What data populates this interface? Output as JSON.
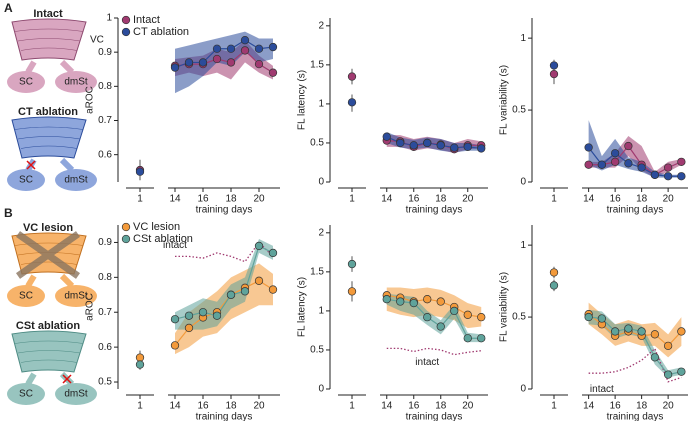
{
  "panel_labels": [
    "A",
    "B"
  ],
  "diagrams": [
    {
      "title": "Intact",
      "label": "VC",
      "left": "SC",
      "right": "dmSt"
    },
    {
      "title": "CT ablation",
      "left": "SC",
      "right": "dmSt"
    },
    {
      "title": "VC lesion",
      "left": "SC",
      "right": "dmSt"
    },
    {
      "title": "CSt ablation",
      "left": "SC",
      "right": "dmSt"
    }
  ],
  "chart_data": [
    {
      "type": "line",
      "ylabel": "aROC",
      "xlabel": "training days",
      "legend": "upper left",
      "x": [
        1,
        14,
        15,
        16,
        17,
        18,
        19,
        20,
        21
      ],
      "xlim": [
        0.5,
        21.5
      ],
      "xbreak": [
        1.5,
        13.5
      ],
      "xticks": [
        1,
        14,
        16,
        18,
        20
      ],
      "ylim": [
        0.52,
        1.0
      ],
      "yticks": [
        0.6,
        0.7,
        0.8,
        0.9,
        1
      ],
      "series": [
        {
          "name": "Intact",
          "color": "#a03a70",
          "values": [
            0.555,
            0.86,
            0.865,
            0.865,
            0.88,
            0.87,
            0.905,
            0.865,
            0.84
          ],
          "lower": [
            0.525,
            0.83,
            0.84,
            0.83,
            0.84,
            0.82,
            0.87,
            0.84,
            0.82
          ],
          "upper": [
            0.585,
            0.88,
            0.885,
            0.89,
            0.91,
            0.9,
            0.935,
            0.89,
            0.86
          ]
        },
        {
          "name": "CT ablation",
          "color": "#2b4c9b",
          "values": [
            0.55,
            0.855,
            0.87,
            0.87,
            0.91,
            0.91,
            0.935,
            0.91,
            0.915
          ],
          "lower": [
            0.535,
            0.78,
            0.8,
            0.83,
            0.87,
            0.86,
            0.9,
            0.87,
            0.88
          ],
          "upper": [
            0.565,
            0.91,
            0.92,
            0.93,
            0.94,
            0.95,
            0.96,
            0.94,
            0.94
          ]
        }
      ]
    },
    {
      "type": "line",
      "ylabel": "FL latency (s)",
      "xlabel": "training days",
      "x": [
        1,
        14,
        15,
        16,
        17,
        18,
        19,
        20,
        21
      ],
      "xlim": [
        0.5,
        21.5
      ],
      "xbreak": [
        1.5,
        13.5
      ],
      "xticks": [
        1,
        14,
        16,
        18,
        20
      ],
      "ylim": [
        0,
        2.1
      ],
      "yticks": [
        0,
        0.5,
        1,
        1.5,
        2
      ],
      "series": [
        {
          "name": "Intact",
          "color": "#a03a70",
          "values": [
            1.35,
            0.53,
            0.52,
            0.45,
            0.5,
            0.48,
            0.42,
            0.47,
            0.47
          ],
          "lower": [
            1.25,
            0.45,
            0.45,
            0.4,
            0.43,
            0.41,
            0.37,
            0.42,
            0.43
          ],
          "upper": [
            1.45,
            0.6,
            0.6,
            0.55,
            0.58,
            0.55,
            0.5,
            0.55,
            0.52
          ]
        },
        {
          "name": "CT ablation",
          "color": "#2b4c9b",
          "values": [
            1.02,
            0.58,
            0.5,
            0.47,
            0.5,
            0.47,
            0.44,
            0.45,
            0.43
          ],
          "lower": [
            0.9,
            0.5,
            0.44,
            0.42,
            0.44,
            0.4,
            0.38,
            0.4,
            0.4
          ],
          "upper": [
            1.12,
            0.64,
            0.57,
            0.54,
            0.57,
            0.55,
            0.5,
            0.5,
            0.47
          ]
        }
      ]
    },
    {
      "type": "line",
      "ylabel": "FL variability (s)",
      "xlabel": "training days",
      "x": [
        1,
        14,
        15,
        16,
        17,
        18,
        19,
        20,
        21
      ],
      "xlim": [
        0.5,
        21.5
      ],
      "xbreak": [
        1.5,
        13.5
      ],
      "xticks": [
        1,
        14,
        16,
        18,
        20
      ],
      "ylim": [
        0,
        1.14
      ],
      "yticks": [
        0,
        0.5,
        1
      ],
      "series": [
        {
          "name": "Intact",
          "color": "#a03a70",
          "values": [
            0.75,
            0.12,
            0.12,
            0.14,
            0.25,
            0.12,
            0.05,
            0.1,
            0.14
          ],
          "lower": [
            0.68,
            0.1,
            0.1,
            0.1,
            0.18,
            0.08,
            0.03,
            0.07,
            0.12
          ],
          "upper": [
            0.81,
            0.14,
            0.14,
            0.2,
            0.32,
            0.25,
            0.07,
            0.14,
            0.16
          ]
        },
        {
          "name": "CT ablation",
          "color": "#2b4c9b",
          "values": [
            0.81,
            0.24,
            0.12,
            0.2,
            0.13,
            0.1,
            0.05,
            0.04,
            0.04
          ],
          "lower": [
            0.76,
            0.12,
            0.08,
            0.12,
            0.09,
            0.07,
            0.03,
            0.03,
            0.03
          ],
          "upper": [
            0.85,
            0.43,
            0.18,
            0.3,
            0.17,
            0.14,
            0.07,
            0.05,
            0.05
          ]
        }
      ]
    },
    {
      "type": "line",
      "ylabel": "aROC",
      "xlabel": "training days",
      "legend": "upper left",
      "x": [
        1,
        14,
        15,
        16,
        17,
        18,
        19,
        20,
        21
      ],
      "xlim": [
        0.5,
        21.5
      ],
      "xbreak": [
        1.5,
        13.5
      ],
      "xticks": [
        1,
        14,
        16,
        18,
        20
      ],
      "ylim": [
        0.48,
        0.95
      ],
      "yticks": [
        0.5,
        0.6,
        0.7,
        0.8,
        0.9
      ],
      "series": [
        {
          "name": "VC lesion",
          "color": "#f39a3b",
          "values": [
            0.57,
            0.605,
            0.655,
            0.685,
            0.7,
            0.75,
            0.77,
            0.79,
            0.765
          ],
          "lower": [
            0.55,
            0.58,
            0.6,
            0.63,
            0.64,
            0.68,
            0.7,
            0.72,
            0.72
          ],
          "upper": [
            0.59,
            0.64,
            0.7,
            0.73,
            0.76,
            0.8,
            0.82,
            0.84,
            0.81
          ]
        },
        {
          "name": "CSt ablation",
          "color": "#5fa39b",
          "values": [
            0.55,
            0.68,
            0.69,
            0.7,
            0.69,
            0.75,
            0.76,
            0.89,
            0.87
          ],
          "lower": [
            0.535,
            0.65,
            0.65,
            0.65,
            0.66,
            0.71,
            0.73,
            0.87,
            0.85
          ],
          "upper": [
            0.565,
            0.7,
            0.72,
            0.74,
            0.73,
            0.78,
            0.8,
            0.91,
            0.89
          ]
        }
      ],
      "reference": {
        "label": "intact",
        "color": "#a03a70",
        "values": [
          null,
          0.86,
          0.86,
          0.855,
          0.87,
          0.86,
          0.845,
          0.9,
          0.86
        ]
      }
    },
    {
      "type": "line",
      "ylabel": "FL latency (s)",
      "xlabel": "training days",
      "x": [
        1,
        14,
        15,
        16,
        17,
        18,
        19,
        20,
        21
      ],
      "xlim": [
        0.5,
        21.5
      ],
      "xbreak": [
        1.5,
        13.5
      ],
      "xticks": [
        1,
        14,
        16,
        18,
        20
      ],
      "ylim": [
        0,
        2.1
      ],
      "yticks": [
        0,
        0.5,
        1,
        1.5,
        2
      ],
      "series": [
        {
          "name": "VC lesion",
          "color": "#f39a3b",
          "values": [
            1.25,
            1.2,
            1.17,
            1.12,
            1.15,
            1.12,
            1.05,
            0.95,
            0.92
          ],
          "lower": [
            1.12,
            1.0,
            0.95,
            0.92,
            0.95,
            0.92,
            0.88,
            0.78,
            0.8
          ],
          "upper": [
            1.38,
            1.3,
            1.3,
            1.28,
            1.3,
            1.27,
            1.2,
            1.1,
            1.05
          ]
        },
        {
          "name": "CSt ablation",
          "color": "#5fa39b",
          "values": [
            1.6,
            1.15,
            1.12,
            1.1,
            0.92,
            0.8,
            1.0,
            0.65,
            0.65
          ],
          "lower": [
            1.5,
            1.08,
            1.0,
            0.95,
            0.82,
            0.7,
            0.9,
            0.6,
            0.6
          ],
          "upper": [
            1.7,
            1.22,
            1.2,
            1.18,
            1.0,
            0.88,
            1.08,
            0.72,
            0.7
          ]
        }
      ],
      "reference": {
        "label": "intact",
        "color": "#a03a70",
        "values": [
          null,
          0.52,
          0.52,
          0.48,
          0.52,
          0.5,
          0.44,
          0.47,
          0.49
        ]
      }
    },
    {
      "type": "line",
      "ylabel": "FL variability (s)",
      "xlabel": "training days",
      "x": [
        1,
        14,
        15,
        16,
        17,
        18,
        19,
        20,
        21
      ],
      "xlim": [
        0.5,
        21.5
      ],
      "xbreak": [
        1.5,
        13.5
      ],
      "xticks": [
        1,
        14,
        16,
        18,
        20
      ],
      "ylim": [
        0,
        1.14
      ],
      "yticks": [
        0,
        0.5,
        1
      ],
      "series": [
        {
          "name": "VC lesion",
          "color": "#f39a3b",
          "values": [
            0.81,
            0.52,
            0.45,
            0.37,
            0.4,
            0.37,
            0.38,
            0.3,
            0.4
          ],
          "lower": [
            0.77,
            0.45,
            0.38,
            0.3,
            0.33,
            0.3,
            0.3,
            0.22,
            0.3
          ],
          "upper": [
            0.85,
            0.6,
            0.52,
            0.45,
            0.48,
            0.45,
            0.46,
            0.38,
            0.5
          ]
        },
        {
          "name": "CSt ablation",
          "color": "#5fa39b",
          "values": [
            0.72,
            0.5,
            0.49,
            0.4,
            0.42,
            0.4,
            0.22,
            0.1,
            0.12
          ],
          "lower": [
            0.68,
            0.45,
            0.44,
            0.35,
            0.38,
            0.36,
            0.17,
            0.08,
            0.1
          ],
          "upper": [
            0.76,
            0.55,
            0.54,
            0.45,
            0.46,
            0.44,
            0.27,
            0.13,
            0.15
          ]
        }
      ],
      "reference": {
        "label": "intact",
        "color": "#a03a70",
        "values": [
          null,
          0.11,
          0.11,
          0.12,
          0.15,
          0.2,
          0.28,
          0.05,
          0.08
        ]
      }
    }
  ]
}
